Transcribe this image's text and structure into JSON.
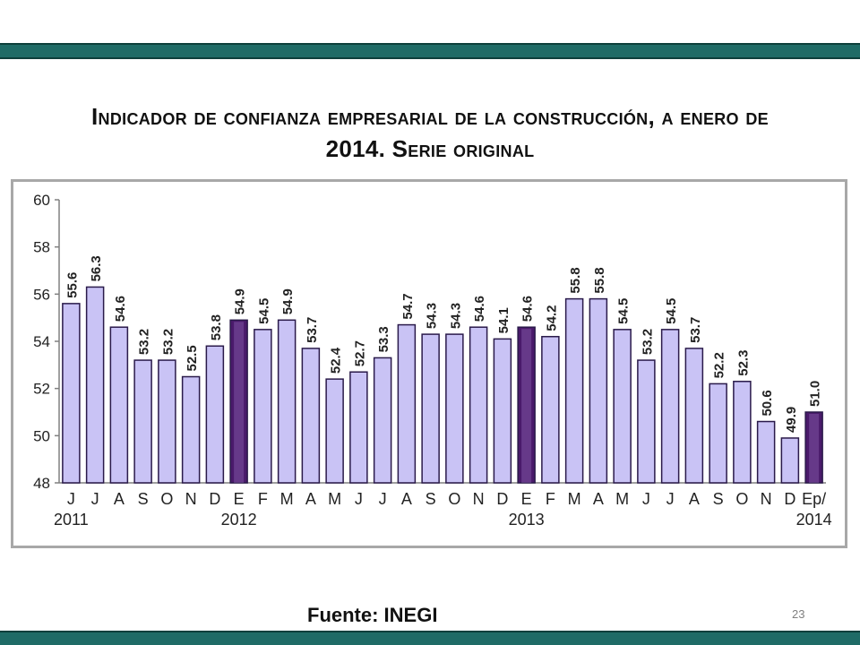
{
  "title": {
    "line1": "Indicador de confianza empresarial de la construcción, a enero de",
    "line2": "2014.  Serie original"
  },
  "source": "Fuente: INEGI",
  "page_number": "23",
  "colors": {
    "header_bar": "#1f6b66",
    "bar_fill": "#c9c3f5",
    "bar_highlight": "#4a1a6b",
    "bar_stroke": "#2a1a4a"
  },
  "chart_data": {
    "type": "bar",
    "title": "Indicador de confianza empresarial de la construcción, a enero de 2014. Serie original",
    "xlabel": "",
    "ylabel": "",
    "ylim": [
      48,
      60
    ],
    "yticks": [
      48,
      50,
      52,
      54,
      56,
      58,
      60
    ],
    "grid": false,
    "legend": "none",
    "categories": [
      "J",
      "J",
      "A",
      "S",
      "O",
      "N",
      "D",
      "E",
      "F",
      "M",
      "A",
      "M",
      "J",
      "J",
      "A",
      "S",
      "O",
      "N",
      "D",
      "E",
      "F",
      "M",
      "A",
      "M",
      "J",
      "J",
      "A",
      "S",
      "O",
      "N",
      "D",
      "Ep/"
    ],
    "year_labels": [
      {
        "label": "2011",
        "index": 0
      },
      {
        "label": "2012",
        "index": 7
      },
      {
        "label": "2013",
        "index": 19
      },
      {
        "label": "2014",
        "index": 31
      }
    ],
    "values": [
      55.6,
      56.3,
      54.6,
      53.2,
      53.2,
      52.5,
      53.8,
      54.9,
      54.5,
      54.9,
      53.7,
      52.4,
      52.7,
      53.3,
      54.7,
      54.3,
      54.3,
      54.6,
      54.1,
      54.6,
      54.2,
      55.8,
      55.8,
      54.5,
      53.2,
      54.5,
      53.7,
      52.2,
      52.3,
      50.6,
      49.9,
      51.0
    ],
    "data_labels": [
      "55.6",
      "56.3",
      "54.6",
      "53.2",
      "53.2",
      "52.5",
      "53.8",
      "54.9",
      "54.5",
      "54.9",
      "53.7",
      "52.4",
      "52.7",
      "53.3",
      "54.7",
      "54.3",
      "54.3",
      "54.6",
      "54.1",
      "54.6",
      "54.2",
      "55.8",
      "55.8",
      "54.5",
      "53.2",
      "54.5",
      "53.7",
      "52.2",
      "52.3",
      "50.6",
      "49.9",
      "51.0"
    ],
    "highlighted": [
      7,
      19,
      31
    ]
  }
}
